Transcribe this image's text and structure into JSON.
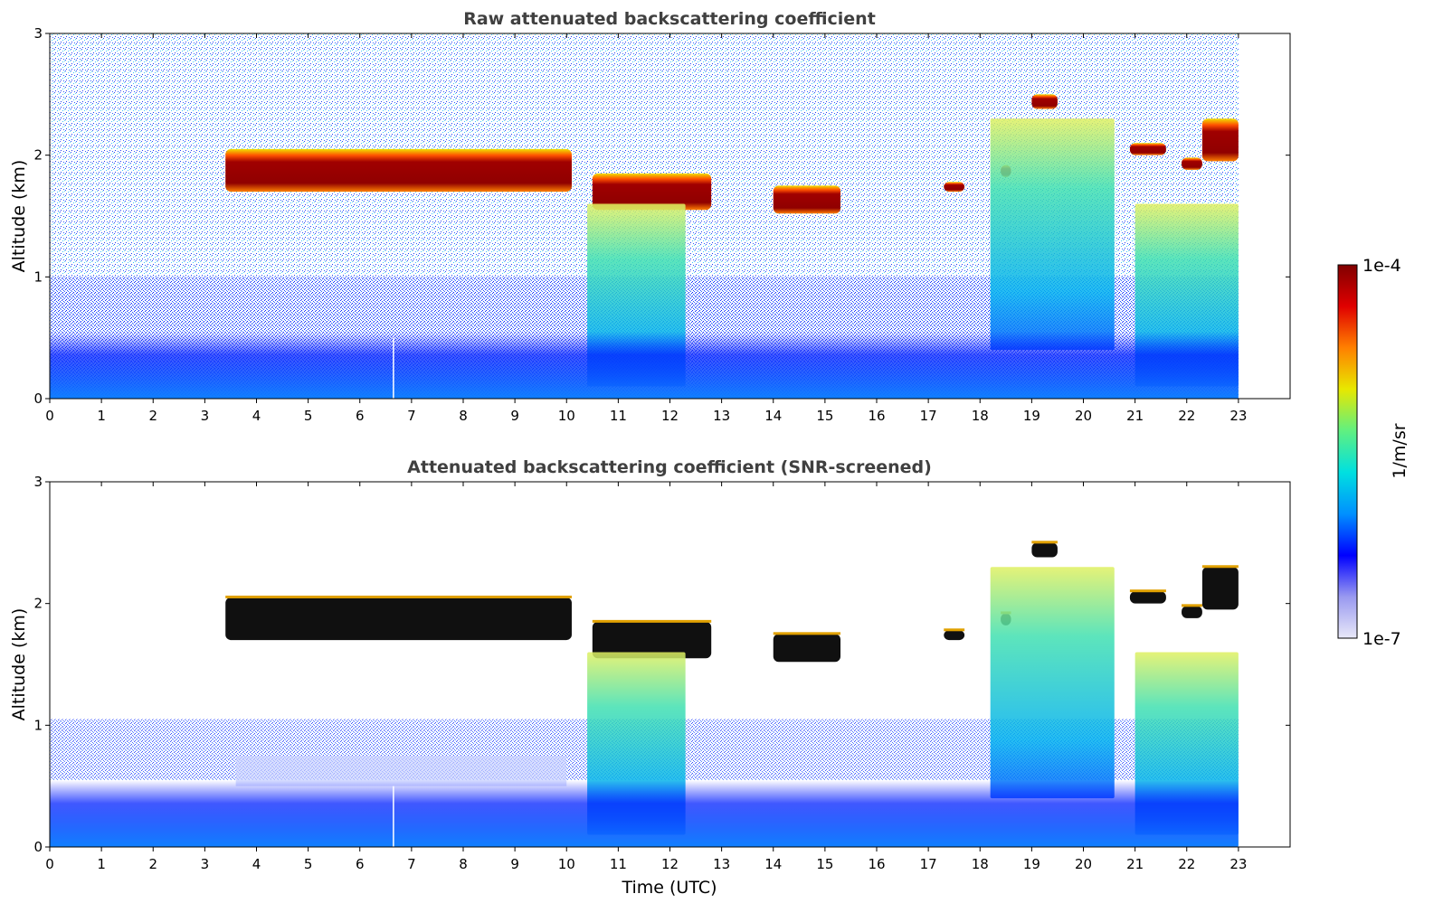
{
  "chart_data": [
    {
      "type": "heatmap",
      "title": "Raw attenuated backscattering coefficient",
      "xlabel": "",
      "ylabel": "Altitude (km)",
      "xlim": [
        0,
        24
      ],
      "ylim": [
        0,
        3
      ],
      "xticks": [
        "0",
        "1",
        "2",
        "3",
        "4",
        "5",
        "6",
        "7",
        "8",
        "9",
        "10",
        "11",
        "12",
        "13",
        "14",
        "15",
        "16",
        "17",
        "18",
        "19",
        "20",
        "21",
        "22",
        "23"
      ],
      "yticks": [
        "0",
        "1",
        "2",
        "3"
      ],
      "data_end_time": 23,
      "features": [
        {
          "kind": "cloud",
          "t_start": 3.4,
          "t_end": 10.1,
          "alt_top": 2.05,
          "alt_base": 1.7
        },
        {
          "kind": "cloud",
          "t_start": 10.5,
          "t_end": 12.8,
          "alt_top": 1.85,
          "alt_base": 1.55
        },
        {
          "kind": "cloud",
          "t_start": 14.0,
          "t_end": 15.3,
          "alt_top": 1.75,
          "alt_base": 1.52
        },
        {
          "kind": "cloud",
          "t_start": 17.3,
          "t_end": 17.7,
          "alt_top": 1.78,
          "alt_base": 1.7
        },
        {
          "kind": "cloud",
          "t_start": 18.4,
          "t_end": 18.6,
          "alt_top": 1.92,
          "alt_base": 1.82
        },
        {
          "kind": "cloud",
          "t_start": 19.0,
          "t_end": 19.5,
          "alt_top": 2.5,
          "alt_base": 2.38
        },
        {
          "kind": "cloud",
          "t_start": 20.9,
          "t_end": 21.6,
          "alt_top": 2.1,
          "alt_base": 2.0
        },
        {
          "kind": "cloud",
          "t_start": 21.9,
          "t_end": 22.3,
          "alt_top": 1.98,
          "alt_base": 1.88
        },
        {
          "kind": "cloud",
          "t_start": 22.3,
          "t_end": 23.0,
          "alt_top": 2.3,
          "alt_base": 1.95
        },
        {
          "kind": "precipitation",
          "t_start": 10.4,
          "t_end": 12.3,
          "alt_top": 1.6,
          "alt_base": 0.1
        },
        {
          "kind": "precipitation",
          "t_start": 18.2,
          "t_end": 20.6,
          "alt_top": 2.3,
          "alt_base": 0.4
        },
        {
          "kind": "precipitation",
          "t_start": 21.0,
          "t_end": 23.0,
          "alt_top": 1.6,
          "alt_base": 0.1
        },
        {
          "kind": "boundary_layer",
          "t_start": 0,
          "t_end": 23.0,
          "alt_top": 0.55,
          "alt_base": 0
        }
      ]
    },
    {
      "type": "heatmap",
      "title": "Attenuated backscattering coefficient (SNR-screened)",
      "xlabel": "Time (UTC)",
      "ylabel": "Altitude (km)",
      "xlim": [
        0,
        24
      ],
      "ylim": [
        0,
        3
      ],
      "xticks": [
        "0",
        "1",
        "2",
        "3",
        "4",
        "5",
        "6",
        "7",
        "8",
        "9",
        "10",
        "11",
        "12",
        "13",
        "14",
        "15",
        "16",
        "17",
        "18",
        "19",
        "20",
        "21",
        "22",
        "23"
      ],
      "yticks": [
        "0",
        "1",
        "2",
        "3"
      ],
      "data_end_time": 23,
      "screened": true
    }
  ],
  "colorbar": {
    "label": "1/m/sr",
    "max_label": "1e-4",
    "min_label": "1e-7",
    "colors": [
      "#e8e8f8",
      "#9999f0",
      "#0000ff",
      "#0090ff",
      "#00e0e0",
      "#60f080",
      "#e8e800",
      "#ff8000",
      "#e00000",
      "#800000"
    ]
  }
}
